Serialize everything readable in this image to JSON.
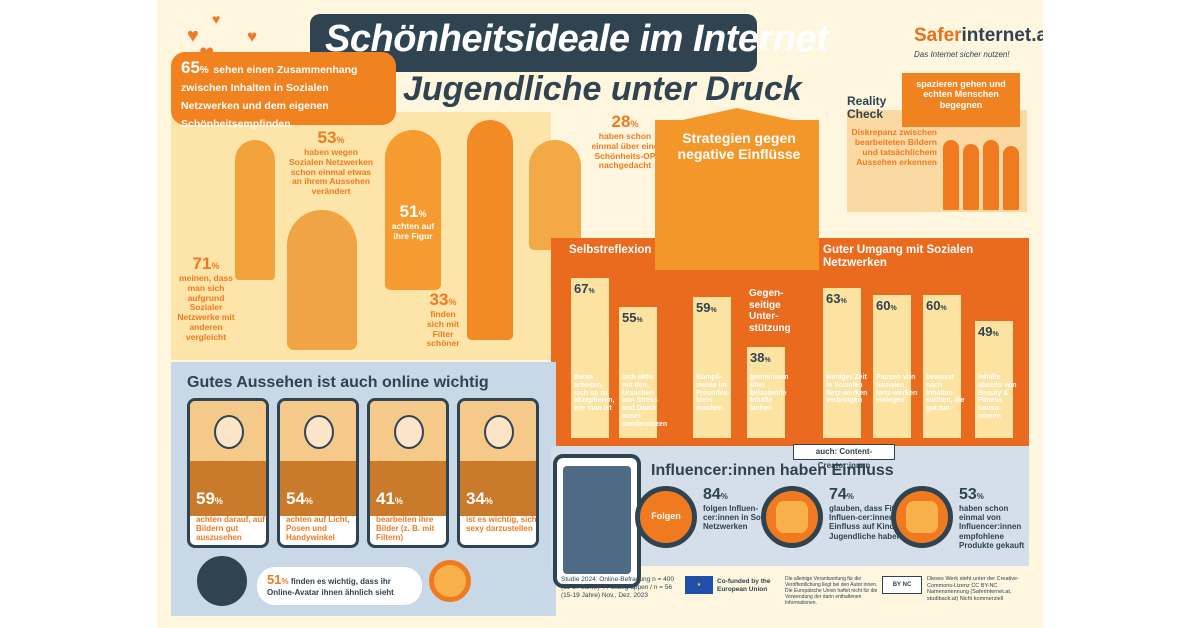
{
  "header": {
    "title": "Schönheitsideale im Internet",
    "subtitle": "Jugendliche unter Druck",
    "logo_saf": "Safer",
    "logo_rest": "internet.at",
    "tagline": "Das Internet sicher nutzen!"
  },
  "intro": {
    "pct": "65",
    "unit": "%",
    "text": "sehen einen Zusammenhang zwischen Inhalten in Sozialen Netzwerken und dem eigenen Schönheitsempfinden"
  },
  "people_stats": [
    {
      "pct": "53",
      "unit": "%",
      "text": "haben wegen Sozialen Netzwerken schon einmal etwas an ihrem Aussehen verändert"
    },
    {
      "pct": "51",
      "unit": "%",
      "text": "achten auf ihre Figur"
    },
    {
      "pct": "28",
      "unit": "%",
      "text": "haben schon einmal über eine Schönheits-OP nachgedacht"
    },
    {
      "pct": "71",
      "unit": "%",
      "text": "meinen, dass man sich aufgrund Sozialer Netzwerke mit anderen vergleicht"
    },
    {
      "pct": "33",
      "unit": "%",
      "text": "finden sich mit Filter schöner"
    }
  ],
  "reality": {
    "title": "Reality Check",
    "tag": "spazieren gehen und echten Menschen begegnen",
    "text": "Diskrepanz zwischen bearbeiteten Bildern und tatsächlichem Aussehen erkennen"
  },
  "strategies": {
    "title": "Strategien gegen negative Einflüsse",
    "left_title": "Selbstreflexion",
    "right_title": "Guter Umgang mit Sozialen Netzwerken",
    "mid_title": "Gegen-seitige Unter-stützung",
    "bars": [
      {
        "pct": "67",
        "unit": "%",
        "text": "daran arbeiten, sich so zu akzeptieren, wie man ist",
        "value": 67
      },
      {
        "pct": "55",
        "unit": "%",
        "text": "sich aktiv mit den Ursachen von Stress und Druck ausei-nandersetzen",
        "value": 55
      },
      {
        "pct": "59",
        "unit": "%",
        "text": "Kompli-mente im Freundes-kreis machen",
        "value": 59
      },
      {
        "pct": "38",
        "unit": "%",
        "text": "gemeinsam über belastende Inhalte lachen",
        "value": 38
      },
      {
        "pct": "63",
        "unit": "%",
        "text": "weniger Zeit in Sozialen Netz-werken verbringen",
        "value": 63
      },
      {
        "pct": "60",
        "unit": "%",
        "text": "Pausen von Sozialen Netz-werken einlegen",
        "value": 60
      },
      {
        "pct": "60",
        "unit": "%",
        "text": "bewusst nach Inhalten suchen, die gut tun",
        "value": 60
      },
      {
        "pct": "49",
        "unit": "%",
        "text": "Inhalte abseits von Beauty & Fitness konsu-mieren",
        "value": 49
      }
    ]
  },
  "looks": {
    "title": "Gutes Aussehen ist auch online wichtig",
    "cards": [
      {
        "pct": "59",
        "unit": "%",
        "text": "achten darauf, auf Bildern gut auszusehen"
      },
      {
        "pct": "54",
        "unit": "%",
        "text": "achten auf Licht, Posen und Handywinkel"
      },
      {
        "pct": "41",
        "unit": "%",
        "text": "bearbeiten ihre Bilder (z. B. mit Filtern)"
      },
      {
        "pct": "34",
        "unit": "%",
        "text": "ist es wichtig, sich sexy darzustellen"
      }
    ],
    "avatar": {
      "pct": "51",
      "unit": "%",
      "text": "finden es wichtig, dass ihr Online-Avatar ihnen ähnlich sieht"
    }
  },
  "influencer": {
    "tag": "auch: Content-Creator:innen",
    "title": "Influencer:innen haben Einfluss",
    "folgen": "Folgen",
    "items": [
      {
        "pct": "84",
        "unit": "%",
        "text": "folgen Influen-cer:innen in Sozialen Netzwerken"
      },
      {
        "pct": "74",
        "unit": "%",
        "text": "glauben, dass Fitness-Influen-cer:innen einen Einfluss auf Kinder und Jugendliche haben"
      },
      {
        "pct": "53",
        "unit": "%",
        "text": "haben schon einmal von Influencer:innen empfohlene Produkte gekauft"
      }
    ]
  },
  "footer": {
    "study": "Studie 2024: Online-Befragung n = 400 (11-17 Jahre) 4 Fokusgruppen / n = 56 (15-19 Jahre) Nov., Dez. 2023",
    "eu": "Co-funded by the European Union",
    "eu_disclaimer": "Die alleinige Verantwortung für die Veröffentlichung liegt bei den Autor:innen. Die Europäische Union haftet nicht für die Verwendung der darin enthaltenen Informationen.",
    "cc": "BY NC",
    "license": "Dieses Werk steht unter der Creative-Commons-Lizenz CC BY-NC Namensnennung (Saferinternet.at, studiback.at) Nicht kommerziell"
  },
  "colors": {
    "orange": "#f07a1f",
    "dark": "#2f4450",
    "light": "#fde4a8",
    "blue": "#c9d8e6"
  }
}
